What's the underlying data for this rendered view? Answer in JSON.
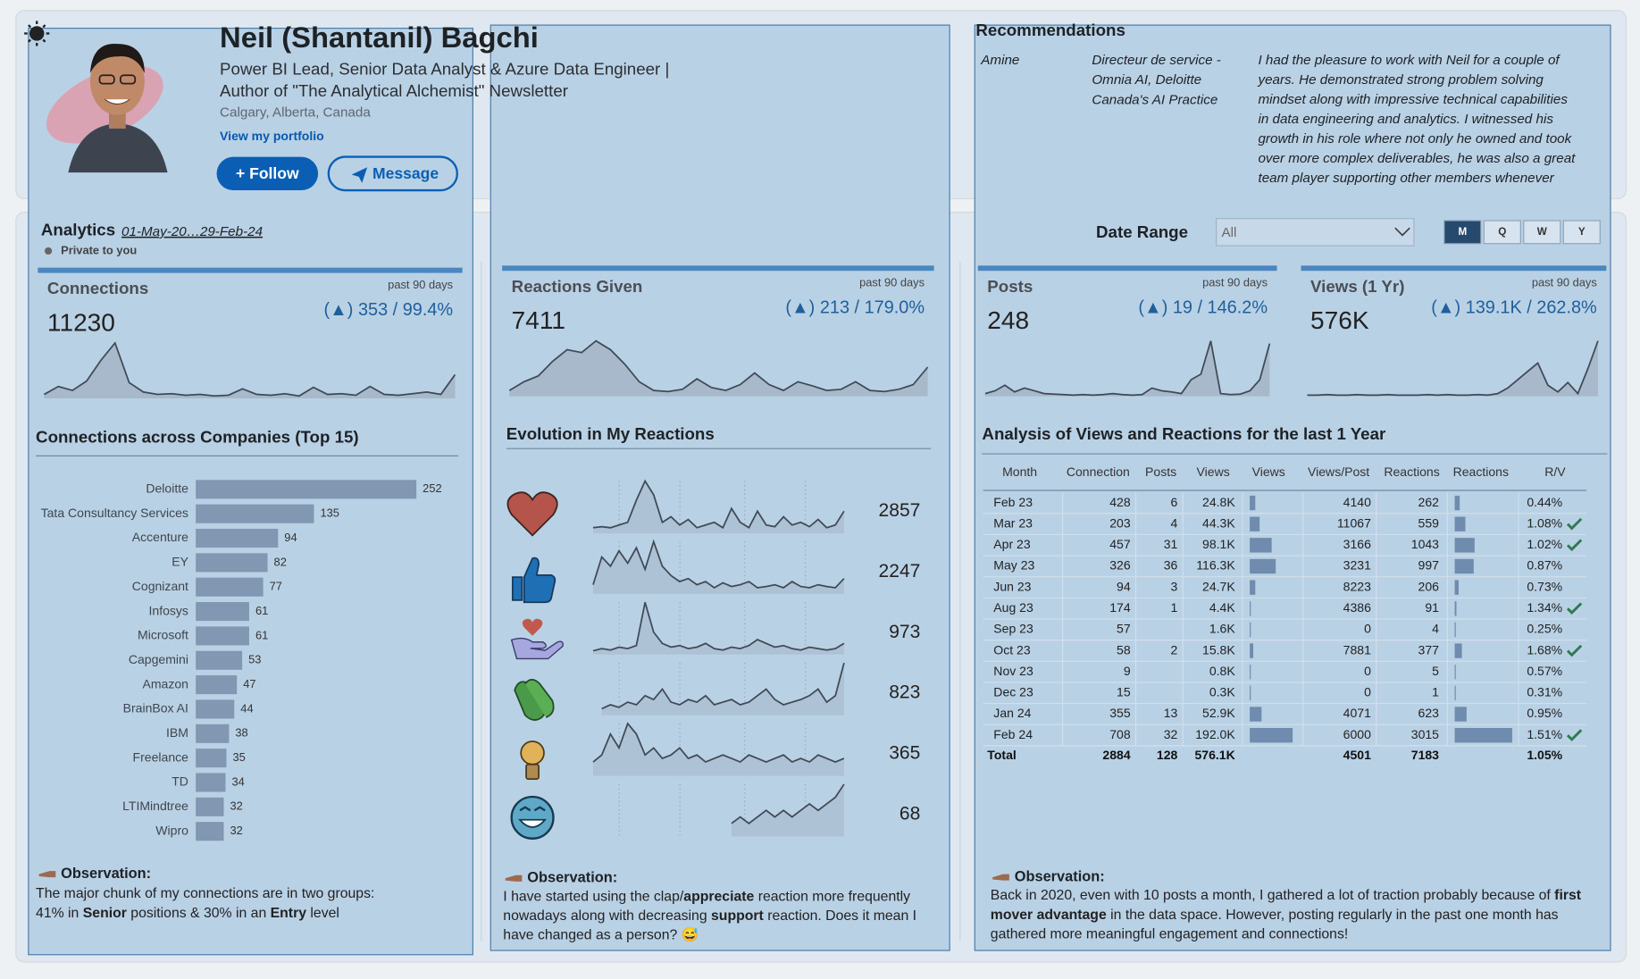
{
  "profile": {
    "name": "Neil (Shantanil) Bagchi",
    "headline": [
      "Power BI Lead, Senior Data Analyst & Azure Data Engineer |",
      "Author of \"The Analytical Alchemist\" Newsletter"
    ],
    "location": "Calgary, Alberta, Canada",
    "portfolio_link": "View my portfolio",
    "buttons": [
      "+ Follow",
      "Message"
    ]
  },
  "recommendations": {
    "title": "Recommendations",
    "items": [
      {
        "name": "Amine",
        "role": [
          "Directeur de service -",
          "Omnia AI, Deloitte",
          "Canada's AI Practice"
        ],
        "text": [
          "I had the pleasure to work with Neil for a couple of",
          "years. He demonstrated strong problem solving",
          "mindset along with impressive technical capabilities",
          "in data engineering and analytics. I witnessed his",
          "growth in his role where not only he owned and took",
          "over more complex deliverables, he was also a great",
          "team player supporting other members whenever"
        ]
      }
    ]
  },
  "analytics": {
    "title": "Analytics",
    "date_range": "01-May-20…29-Feb-24",
    "privacy": "Private to you"
  },
  "filters": {
    "label": "Date Range",
    "dropdown": "All",
    "periods": [
      "M",
      "Q",
      "W",
      "Y"
    ],
    "selected": "M"
  },
  "kpis": [
    {
      "title": "Connections",
      "period": "past 90 days",
      "value": 11230,
      "change": "(▲) 353 / 99.4%",
      "trend": [
        5,
        15,
        10,
        22,
        48,
        70,
        20,
        8,
        5,
        6,
        4,
        5,
        3,
        4,
        12,
        5,
        4,
        6,
        3,
        14,
        5,
        6,
        4,
        15,
        5,
        4,
        6,
        8,
        5,
        30
      ]
    },
    {
      "title": "Reactions Given",
      "period": "past 90 days",
      "value": 7411,
      "change": "(▲) 213 / 179.0%",
      "trend": [
        10,
        25,
        35,
        60,
        80,
        75,
        95,
        80,
        55,
        25,
        10,
        8,
        12,
        30,
        15,
        10,
        20,
        40,
        20,
        10,
        25,
        18,
        10,
        12,
        25,
        10,
        8,
        12,
        20,
        50
      ]
    },
    {
      "title": "Posts",
      "period": "past 90 days",
      "value": 248,
      "change": "(▲) 19 / 146.2%",
      "trend": [
        5,
        10,
        20,
        8,
        15,
        10,
        5,
        4,
        3,
        2,
        3,
        2,
        3,
        5,
        3,
        2,
        3,
        15,
        10,
        8,
        5,
        30,
        40,
        100,
        5,
        3,
        4,
        10,
        30,
        95
      ]
    },
    {
      "title": "Views (1 Yr)",
      "period": "past 90 days",
      "value": "576K",
      "change": "(▲) 139.1K / 262.8%",
      "trend": [
        2,
        2,
        3,
        2,
        2,
        3,
        2,
        2,
        3,
        2,
        2,
        2,
        3,
        2,
        3,
        2,
        2,
        3,
        2,
        5,
        15,
        30,
        45,
        60,
        20,
        8,
        25,
        5,
        50,
        100
      ]
    }
  ],
  "companies": {
    "title": "Connections across Companies (Top 15)",
    "color": "#8297b1",
    "categories": [
      "Deloitte",
      "Tata Consultancy Services",
      "Accenture",
      "EY",
      "Cognizant",
      "Infosys",
      "Microsoft",
      "Capgemini",
      "Amazon",
      "BrainBox AI",
      "IBM",
      "Freelance",
      "TD",
      "LTIMindtree",
      "Wipro"
    ],
    "values": [
      252,
      135,
      94,
      82,
      77,
      61,
      61,
      53,
      47,
      44,
      38,
      35,
      34,
      32,
      32
    ]
  },
  "reactions": {
    "title": "Evolution in My Reactions",
    "items": [
      {
        "total": 2857,
        "trend": [
          10,
          12,
          10,
          15,
          20,
          60,
          95,
          70,
          20,
          30,
          15,
          25,
          10,
          15,
          20,
          10,
          45,
          20,
          10,
          40,
          15,
          12,
          30,
          15,
          20,
          12,
          25,
          10,
          15,
          40
        ]
      },
      {
        "total": 2247,
        "trend": [
          15,
          60,
          45,
          70,
          50,
          75,
          40,
          85,
          45,
          30,
          20,
          25,
          15,
          20,
          10,
          18,
          12,
          15,
          20,
          10,
          12,
          15,
          10,
          20,
          12,
          10,
          15,
          12,
          10,
          25
        ]
      },
      {
        "total": 973,
        "trend": [
          5,
          8,
          6,
          10,
          8,
          12,
          70,
          30,
          15,
          10,
          12,
          8,
          10,
          15,
          8,
          6,
          10,
          8,
          12,
          20,
          15,
          10,
          12,
          8,
          6,
          10,
          8,
          6,
          8,
          15
        ]
      },
      {
        "total": 823,
        "trend": [
          null,
          5,
          8,
          6,
          10,
          8,
          15,
          12,
          20,
          10,
          8,
          12,
          10,
          15,
          8,
          10,
          12,
          8,
          10,
          15,
          20,
          12,
          8,
          10,
          12,
          15,
          20,
          10,
          15,
          40
        ]
      },
      {
        "total": 365,
        "trend": [
          4,
          6,
          12,
          8,
          15,
          12,
          6,
          8,
          5,
          6,
          8,
          5,
          6,
          4,
          5,
          6,
          5,
          4,
          6,
          5,
          4,
          5,
          6,
          4,
          5,
          4,
          6,
          5,
          4,
          5
        ]
      },
      {
        "total": 68,
        "trend": [
          null,
          null,
          null,
          null,
          null,
          null,
          null,
          null,
          null,
          null,
          null,
          null,
          null,
          null,
          null,
          null,
          2,
          3,
          2,
          3,
          4,
          3,
          4,
          3,
          4,
          5,
          4,
          5,
          6,
          8
        ]
      }
    ]
  },
  "table": {
    "title": "Analysis of Views and Reactions for the last 1 Year",
    "headers": [
      "Month",
      "Connection",
      "Posts",
      "Views",
      "Views",
      "Views/Post",
      "Reactions",
      "Reactions",
      "R/V"
    ],
    "bar_color": "#6f8cae",
    "check_color": "#2f7a52",
    "rows": [
      {
        "cells": [
          "Feb 23",
          428,
          6,
          "24.8K",
          4140,
          262,
          "0.44%"
        ],
        "check": false
      },
      {
        "cells": [
          "Mar 23",
          203,
          4,
          "44.3K",
          11067,
          559,
          "1.08%"
        ],
        "check": true
      },
      {
        "cells": [
          "Apr 23",
          457,
          31,
          "98.1K",
          3166,
          1043,
          "1.02%"
        ],
        "check": true
      },
      {
        "cells": [
          "May 23",
          326,
          36,
          "116.3K",
          3231,
          997,
          "0.87%"
        ],
        "check": false
      },
      {
        "cells": [
          "Jun 23",
          94,
          3,
          "24.7K",
          8223,
          206,
          "0.73%"
        ],
        "check": false
      },
      {
        "cells": [
          "Aug 23",
          174,
          1,
          "4.4K",
          4386,
          91,
          "1.34%"
        ],
        "check": true
      },
      {
        "cells": [
          "Sep 23",
          57,
          null,
          "1.6K",
          0,
          4,
          "0.25%"
        ],
        "check": false
      },
      {
        "cells": [
          "Oct 23",
          58,
          2,
          "15.8K",
          7881,
          377,
          "1.68%"
        ],
        "check": true
      },
      {
        "cells": [
          "Nov 23",
          9,
          null,
          "0.8K",
          0,
          5,
          "0.57%"
        ],
        "check": false
      },
      {
        "cells": [
          "Dec 23",
          15,
          null,
          "0.3K",
          0,
          1,
          "0.31%"
        ],
        "check": false
      },
      {
        "cells": [
          "Jan 24",
          355,
          13,
          "52.9K",
          4071,
          623,
          "0.95%"
        ],
        "check": false
      },
      {
        "cells": [
          "Feb 24",
          708,
          32,
          "192.0K",
          6000,
          3015,
          "1.51%"
        ],
        "check": true
      }
    ],
    "total": [
      "Total",
      2884,
      128,
      "576.1K",
      4501,
      7183,
      "1.05%"
    ]
  },
  "observations": [
    {
      "label": "Observation:",
      "lines": [
        [
          "The major chunk of my connections are in two groups:"
        ],
        [
          "41% in ",
          {
            "bold": "Senior"
          },
          " positions & 30% in an ",
          {
            "bold": "Entry"
          },
          " level"
        ]
      ]
    },
    {
      "label": "Observation:",
      "lines": [
        [
          "I have started using the clap/",
          {
            "bold": "appreciate"
          },
          " reaction more frequently"
        ],
        [
          "nowadays along with decreasing ",
          {
            "bold": "support"
          },
          " reaction. Does it mean I"
        ],
        [
          "have changed as a person? 😅"
        ]
      ]
    },
    {
      "label": "Observation:",
      "lines": [
        [
          "Back in 2020, even with 10 posts a month, I gathered a lot of traction probably because of ",
          {
            "bold": "first"
          }
        ],
        [
          {
            "bold": "mover advantage"
          },
          " in the data space. However, posting regularly in the past one month has"
        ],
        [
          "gathered more meaningful engagement and connections!"
        ]
      ]
    }
  ]
}
